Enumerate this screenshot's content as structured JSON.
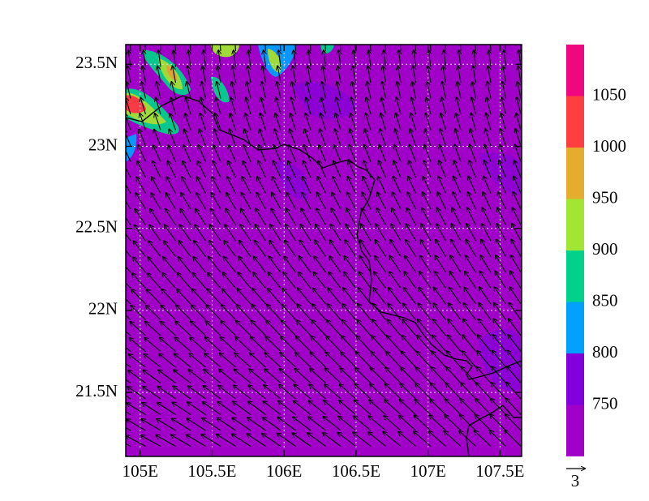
{
  "chart_data": {
    "type": "contour",
    "xlim": [
      104.9,
      107.65
    ],
    "ylim": [
      21.11,
      23.62
    ],
    "xticks": [
      {
        "value": 105,
        "label": "105E"
      },
      {
        "value": 105.5,
        "label": "105.5E"
      },
      {
        "value": 106,
        "label": "106E"
      },
      {
        "value": 106.5,
        "label": "106.5E"
      },
      {
        "value": 107,
        "label": "107E"
      },
      {
        "value": 107.5,
        "label": "107.5E"
      }
    ],
    "yticks": [
      {
        "value": 21.5,
        "label": "21.5N"
      },
      {
        "value": 22,
        "label": "22N"
      },
      {
        "value": 22.5,
        "label": "22.5N"
      },
      {
        "value": 23,
        "label": "23N"
      },
      {
        "value": 23.5,
        "label": "23.5N"
      }
    ],
    "grid": true,
    "colorbar": {
      "lim": [
        700,
        1100
      ],
      "levels": [
        750,
        800,
        850,
        900,
        950,
        1000,
        1050
      ],
      "colors": [
        "#a000c8",
        "#8200dc",
        "#00a0ff",
        "#00d28c",
        "#a0e632",
        "#e6ac2e",
        "#ff3f3f",
        "#f0077f"
      ]
    },
    "vector_reference": {
      "label": "3"
    }
  }
}
